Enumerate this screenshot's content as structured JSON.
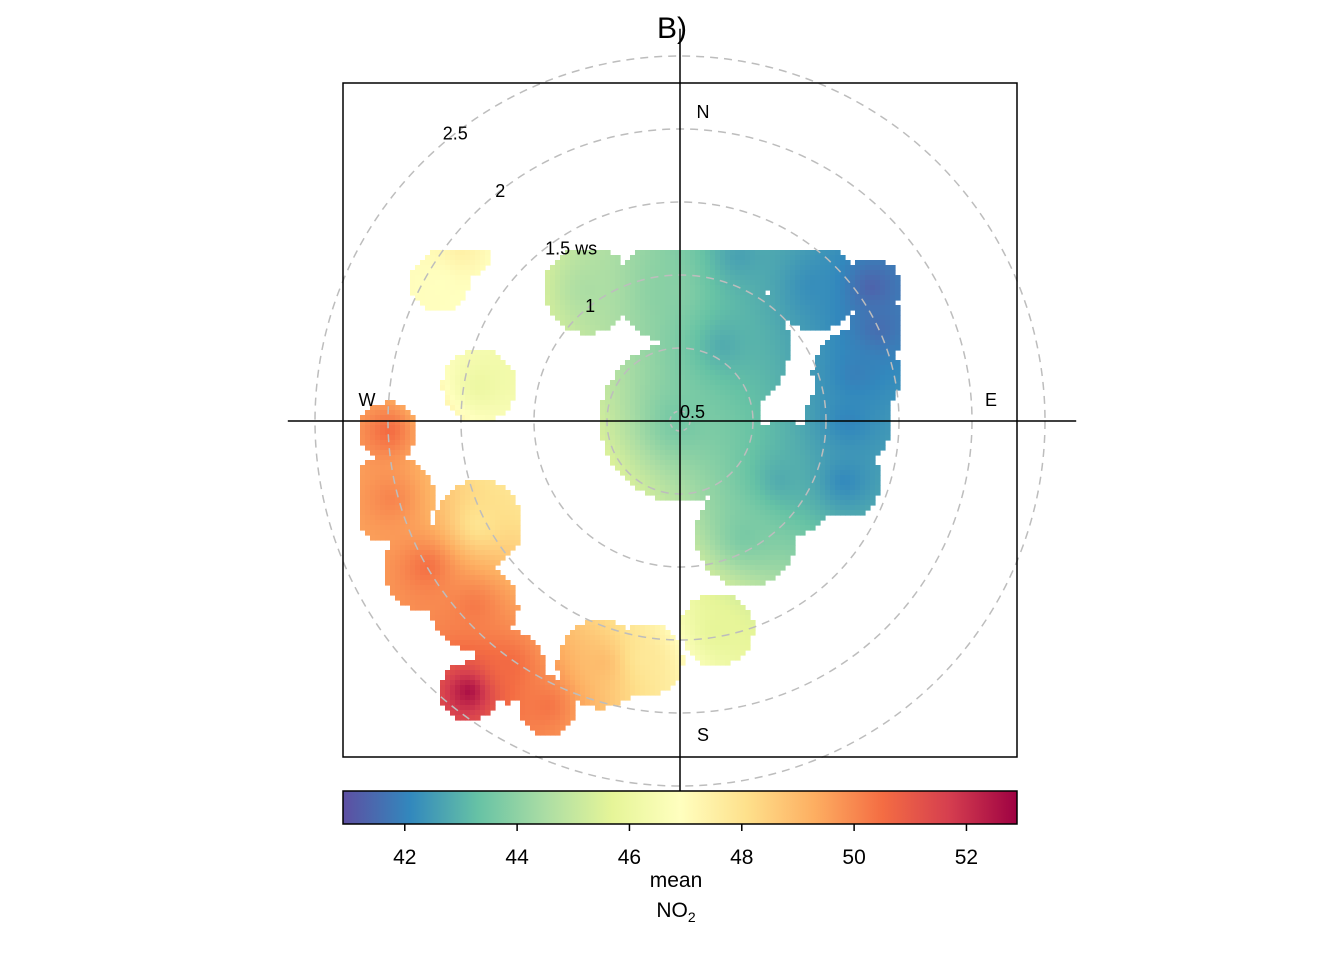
{
  "chart_data": {
    "type": "heatmap",
    "subtype": "polar-plot",
    "title": "B)",
    "directions": {
      "N": "N",
      "E": "E",
      "S": "S",
      "W": "W"
    },
    "radial_axis": {
      "variable": "ws",
      "rings": [
        0.5,
        1,
        1.5,
        2,
        2.5
      ],
      "ring_labels": [
        "0.5",
        "1",
        "1.5 ws",
        "2",
        "2.5"
      ],
      "max": 2.7,
      "grid": "dashed"
    },
    "colorbar": {
      "range": [
        40.9,
        52.9
      ],
      "ticks": [
        42,
        44,
        46,
        48,
        50,
        52
      ],
      "tick_labels": [
        "42",
        "44",
        "46",
        "48",
        "50",
        "52"
      ],
      "title_line1": "mean",
      "title_line2_main": "NO",
      "title_line2_sub": "2",
      "palette": [
        "#5E4FA2",
        "#3288BD",
        "#66C2A5",
        "#ABDDA4",
        "#E6F598",
        "#FFFFBF",
        "#FEE08B",
        "#FDAE61",
        "#F46D43",
        "#D53E4F",
        "#9E0142"
      ]
    },
    "blobs": [
      {
        "ws": 0.0,
        "dir": 0,
        "radius": 0.55,
        "value": 43.5
      },
      {
        "ws": 0.6,
        "dir": 30,
        "radius": 0.45,
        "value": 42.8
      },
      {
        "ws": 1.2,
        "dir": 20,
        "radius": 0.3,
        "value": 42.6
      },
      {
        "ws": 1.3,
        "dir": 45,
        "radius": 0.3,
        "value": 42.2
      },
      {
        "ws": 1.6,
        "dir": 55,
        "radius": 0.2,
        "value": 41.3
      },
      {
        "ws": 1.5,
        "dir": 65,
        "radius": 0.2,
        "value": 41.5
      },
      {
        "ws": 1.25,
        "dir": 75,
        "radius": 0.3,
        "value": 41.9
      },
      {
        "ws": 1.15,
        "dir": 90,
        "radius": 0.3,
        "value": 42.0
      },
      {
        "ws": 1.2,
        "dir": 110,
        "radius": 0.25,
        "value": 42.1
      },
      {
        "ws": 0.8,
        "dir": 120,
        "radius": 0.4,
        "value": 42.8
      },
      {
        "ws": 0.9,
        "dir": 150,
        "radius": 0.35,
        "value": 43.6
      },
      {
        "ws": 1.45,
        "dir": 170,
        "radius": 0.25,
        "value": 45.7
      },
      {
        "ws": 1.65,
        "dir": 188,
        "radius": 0.25,
        "value": 47.8
      },
      {
        "ws": 1.75,
        "dir": 198,
        "radius": 0.3,
        "value": 49.0
      },
      {
        "ws": 2.15,
        "dir": 205,
        "radius": 0.2,
        "value": 50.4
      },
      {
        "ws": 2.05,
        "dir": 215,
        "radius": 0.25,
        "value": 50.6
      },
      {
        "ws": 2.35,
        "dir": 218,
        "radius": 0.2,
        "value": 52.7
      },
      {
        "ws": 1.9,
        "dir": 228,
        "radius": 0.3,
        "value": 50.3
      },
      {
        "ws": 2.0,
        "dir": 240,
        "radius": 0.3,
        "value": 50.5
      },
      {
        "ws": 2.05,
        "dir": 255,
        "radius": 0.3,
        "value": 50.1
      },
      {
        "ws": 2.0,
        "dir": 268,
        "radius": 0.2,
        "value": 50.6
      },
      {
        "ws": 1.55,
        "dir": 243,
        "radius": 0.3,
        "value": 47.9
      },
      {
        "ws": 1.4,
        "dir": 280,
        "radius": 0.25,
        "value": 46.0
      },
      {
        "ws": 1.9,
        "dir": 300,
        "radius": 0.2,
        "value": 46.9
      },
      {
        "ws": 1.9,
        "dir": 308,
        "radius": 0.2,
        "value": 47.5
      },
      {
        "ws": 1.1,
        "dir": 325,
        "radius": 0.3,
        "value": 44.5
      },
      {
        "ws": 0.9,
        "dir": 355,
        "radius": 0.35,
        "value": 43.9
      }
    ]
  }
}
